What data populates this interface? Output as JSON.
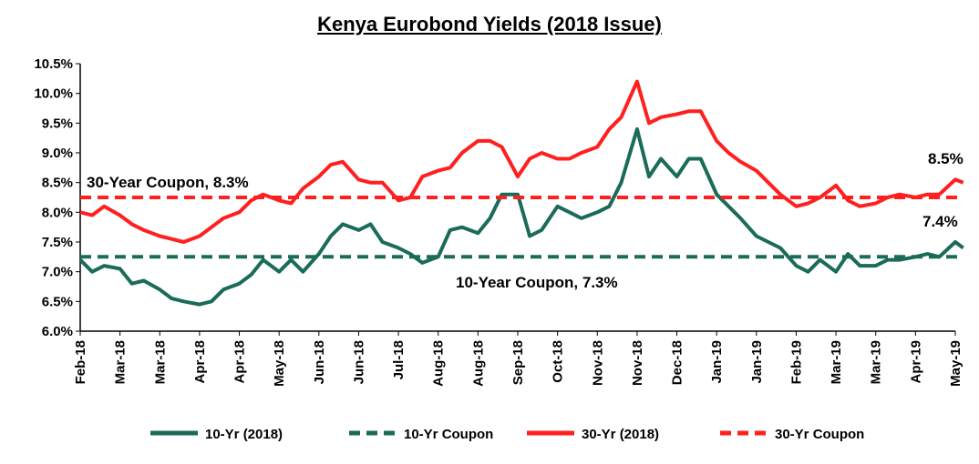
{
  "chart_data": {
    "type": "line",
    "title": "Kenya Eurobond Yields (2018 Issue)",
    "ylim": [
      6.0,
      10.5
    ],
    "y_ticks": [
      "6.0%",
      "6.5%",
      "7.0%",
      "7.5%",
      "8.0%",
      "8.5%",
      "9.0%",
      "9.5%",
      "10.0%",
      "10.5%"
    ],
    "x_tick_labels": [
      "Feb-18",
      "Mar-18",
      "Mar-18",
      "Apr-18",
      "Apr-18",
      "May-18",
      "Jun-18",
      "Jun-18",
      "Jul-18",
      "Aug-18",
      "Aug-18",
      "Sep-18",
      "Oct-18",
      "Nov-18",
      "Nov-18",
      "Dec-18",
      "Jan-19",
      "Jan-19",
      "Feb-19",
      "Mar-19",
      "Mar-19",
      "Apr-19",
      "May-19"
    ],
    "grid": false,
    "legend_position": "bottom",
    "colors": {
      "green": "#1a6b57",
      "red": "#ff1f1f"
    },
    "series": [
      {
        "name": "10-Yr (2018)",
        "style": "solid",
        "color": "#1a6b57",
        "x": [
          0,
          0.3,
          0.6,
          1,
          1.3,
          1.6,
          2,
          2.3,
          2.6,
          3,
          3.3,
          3.6,
          4,
          4.3,
          4.6,
          5,
          5.3,
          5.6,
          6,
          6.3,
          6.6,
          7,
          7.3,
          7.6,
          8,
          8.3,
          8.6,
          9,
          9.3,
          9.6,
          10,
          10.3,
          10.6,
          11,
          11.3,
          11.6,
          12,
          12.3,
          12.6,
          13,
          13.3,
          13.6,
          14,
          14.3,
          14.6,
          15,
          15.3,
          15.6,
          16,
          16.3,
          16.6,
          17,
          17.3,
          17.6,
          18,
          18.3,
          18.6,
          19,
          19.3,
          19.6,
          20,
          20.3,
          20.6,
          21,
          21.3,
          21.6,
          22,
          22.2
        ],
        "values": [
          7.2,
          7.0,
          7.1,
          7.05,
          6.8,
          6.85,
          6.7,
          6.55,
          6.5,
          6.45,
          6.5,
          6.7,
          6.8,
          6.95,
          7.2,
          7.0,
          7.2,
          7.0,
          7.3,
          7.6,
          7.8,
          7.7,
          7.8,
          7.5,
          7.4,
          7.3,
          7.15,
          7.25,
          7.7,
          7.75,
          7.65,
          7.9,
          8.3,
          8.3,
          7.6,
          7.7,
          8.1,
          8.0,
          7.9,
          8.0,
          8.1,
          8.5,
          9.4,
          8.6,
          8.9,
          8.6,
          8.9,
          8.9,
          8.3,
          8.1,
          7.9,
          7.6,
          7.5,
          7.4,
          7.1,
          7.0,
          7.2,
          7.0,
          7.3,
          7.1,
          7.1,
          7.2,
          7.2,
          7.25,
          7.3,
          7.25,
          7.5,
          7.4
        ]
      },
      {
        "name": "10-Yr Coupon",
        "style": "dashed",
        "color": "#1a6b57",
        "x": [
          0,
          22.2
        ],
        "values": [
          7.25,
          7.25
        ]
      },
      {
        "name": "30-Yr (2018)",
        "style": "solid",
        "color": "#ff1f1f",
        "x": [
          0,
          0.3,
          0.6,
          1,
          1.3,
          1.6,
          2,
          2.3,
          2.6,
          3,
          3.3,
          3.6,
          4,
          4.3,
          4.6,
          5,
          5.3,
          5.6,
          6,
          6.3,
          6.6,
          7,
          7.3,
          7.6,
          8,
          8.3,
          8.6,
          9,
          9.3,
          9.6,
          10,
          10.3,
          10.6,
          11,
          11.3,
          11.6,
          12,
          12.3,
          12.6,
          13,
          13.3,
          13.6,
          14,
          14.3,
          14.6,
          15,
          15.3,
          15.6,
          16,
          16.3,
          16.6,
          17,
          17.3,
          17.6,
          18,
          18.3,
          18.6,
          19,
          19.3,
          19.6,
          20,
          20.3,
          20.6,
          21,
          21.3,
          21.6,
          22,
          22.2
        ],
        "values": [
          8.0,
          7.95,
          8.1,
          7.95,
          7.8,
          7.7,
          7.6,
          7.55,
          7.5,
          7.6,
          7.75,
          7.9,
          8.0,
          8.2,
          8.3,
          8.2,
          8.15,
          8.4,
          8.6,
          8.8,
          8.85,
          8.55,
          8.5,
          8.5,
          8.2,
          8.25,
          8.6,
          8.7,
          8.75,
          9.0,
          9.2,
          9.2,
          9.1,
          8.6,
          8.9,
          9.0,
          8.9,
          8.9,
          9.0,
          9.1,
          9.4,
          9.6,
          10.2,
          9.5,
          9.6,
          9.65,
          9.7,
          9.7,
          9.2,
          9.0,
          8.85,
          8.7,
          8.5,
          8.3,
          8.1,
          8.15,
          8.25,
          8.45,
          8.2,
          8.1,
          8.15,
          8.25,
          8.3,
          8.25,
          8.3,
          8.3,
          8.55,
          8.5
        ]
      },
      {
        "name": "30-Yr Coupon",
        "style": "dashed",
        "color": "#ff1f1f",
        "x": [
          0,
          22.2
        ],
        "values": [
          8.25,
          8.25
        ]
      }
    ],
    "annotations": [
      {
        "text": "30-Year Coupon, 8.3%"
      },
      {
        "text": "10-Year Coupon, 7.3%"
      },
      {
        "text": "8.5%"
      },
      {
        "text": "7.4%"
      }
    ]
  }
}
